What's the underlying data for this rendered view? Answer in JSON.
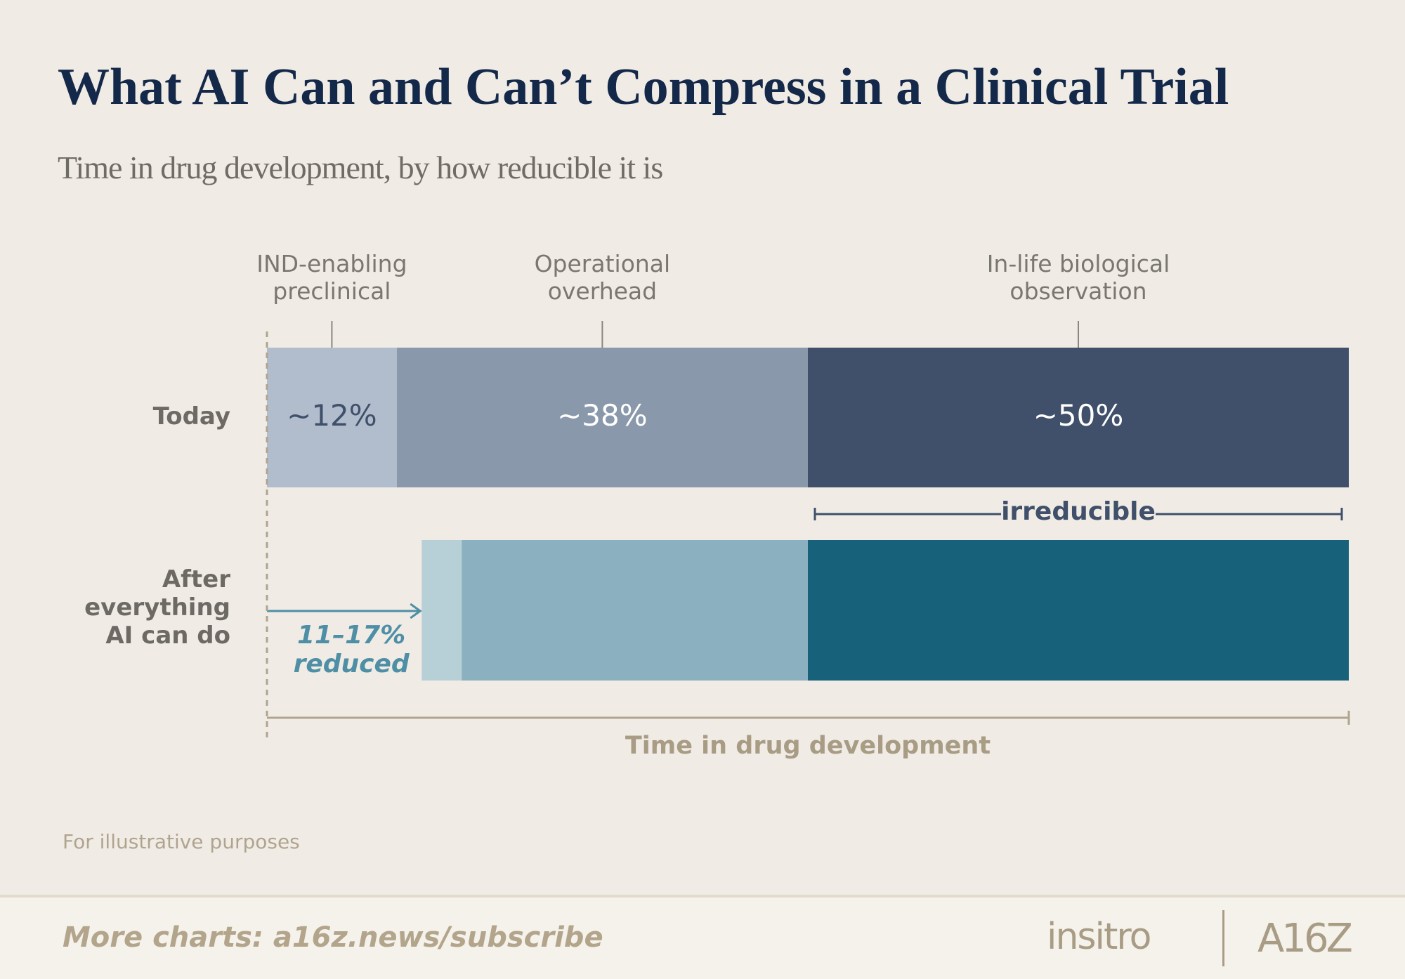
{
  "chart_data": {
    "type": "stacked-bar-horizontal",
    "title": "What AI Can and Can’t Compress in a Clinical Trial",
    "subtitle": "Time in drug development, by how reducible it is",
    "categories": [
      "Today",
      "After everything AI can do"
    ],
    "series": [
      {
        "name": "IND-enabling preclinical",
        "colors": [
          "#b1bdcd",
          "#b7cfd6"
        ],
        "values": [
          12,
          3.7
        ],
        "value_labels": [
          "~12%",
          null
        ]
      },
      {
        "name": "Operational overhead",
        "colors": [
          "#8a98ab",
          "#8bb1c0"
        ],
        "values": [
          38,
          32
        ],
        "value_labels": [
          "~38%",
          null
        ]
      },
      {
        "name": "In-life biological observation",
        "colors": [
          "#40506a",
          "#17627a"
        ],
        "values": [
          50,
          50
        ],
        "value_labels": [
          "~50%",
          null
        ]
      }
    ],
    "xlim": [
      0,
      100
    ],
    "xlabel": "Time in drug development",
    "annotations": {
      "irreducible": "irreducible",
      "reduced": "11–17% reduced"
    },
    "note": "For illustrative purposes",
    "footer": "More charts: a16z.news/subscribe",
    "logos": [
      "insitro",
      "A16Z"
    ]
  }
}
